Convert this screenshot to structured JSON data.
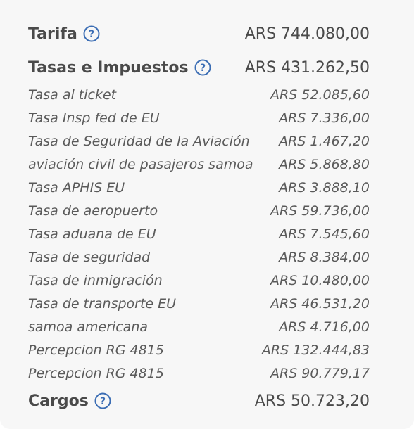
{
  "summary": {
    "tarifa": {
      "label": "Tarifa",
      "amount": "ARS 744.080,00"
    },
    "tasas": {
      "label": "Tasas e Impuestos",
      "amount": "ARS 431.262,50"
    },
    "cargos": {
      "label": "Cargos",
      "amount": "ARS 50.723,20"
    }
  },
  "tax_items": [
    {
      "label": "Tasa al ticket",
      "amount": "ARS 52.085,60"
    },
    {
      "label": "Tasa Insp fed de EU",
      "amount": "ARS 7.336,00"
    },
    {
      "label": "Tasa de Seguridad de la Aviación",
      "amount": "ARS 1.467,20"
    },
    {
      "label": "aviación civil de pasajeros samoa",
      "amount": "ARS 5.868,80"
    },
    {
      "label": "Tasa APHIS EU",
      "amount": "ARS 3.888,10"
    },
    {
      "label": "Tasa de aeropuerto",
      "amount": "ARS 59.736,00"
    },
    {
      "label": "Tasa aduana de EU",
      "amount": "ARS 7.545,60"
    },
    {
      "label": "Tasa de seguridad",
      "amount": "ARS 8.384,00"
    },
    {
      "label": "Tasa de inmigración",
      "amount": "ARS 10.480,00"
    },
    {
      "label": "Tasa de transporte EU",
      "amount": "ARS 46.531,20"
    },
    {
      "label": "samoa americana",
      "amount": "ARS 4.716,00"
    },
    {
      "label": "Percepcion RG 4815",
      "amount": "ARS 132.444,83"
    },
    {
      "label": "Percepcion RG 4815",
      "amount": "ARS 90.779,17"
    }
  ],
  "icons": {
    "help": "question-circle-icon"
  },
  "colors": {
    "help_icon": "#3b6db4",
    "text": "#4a4a4a"
  }
}
